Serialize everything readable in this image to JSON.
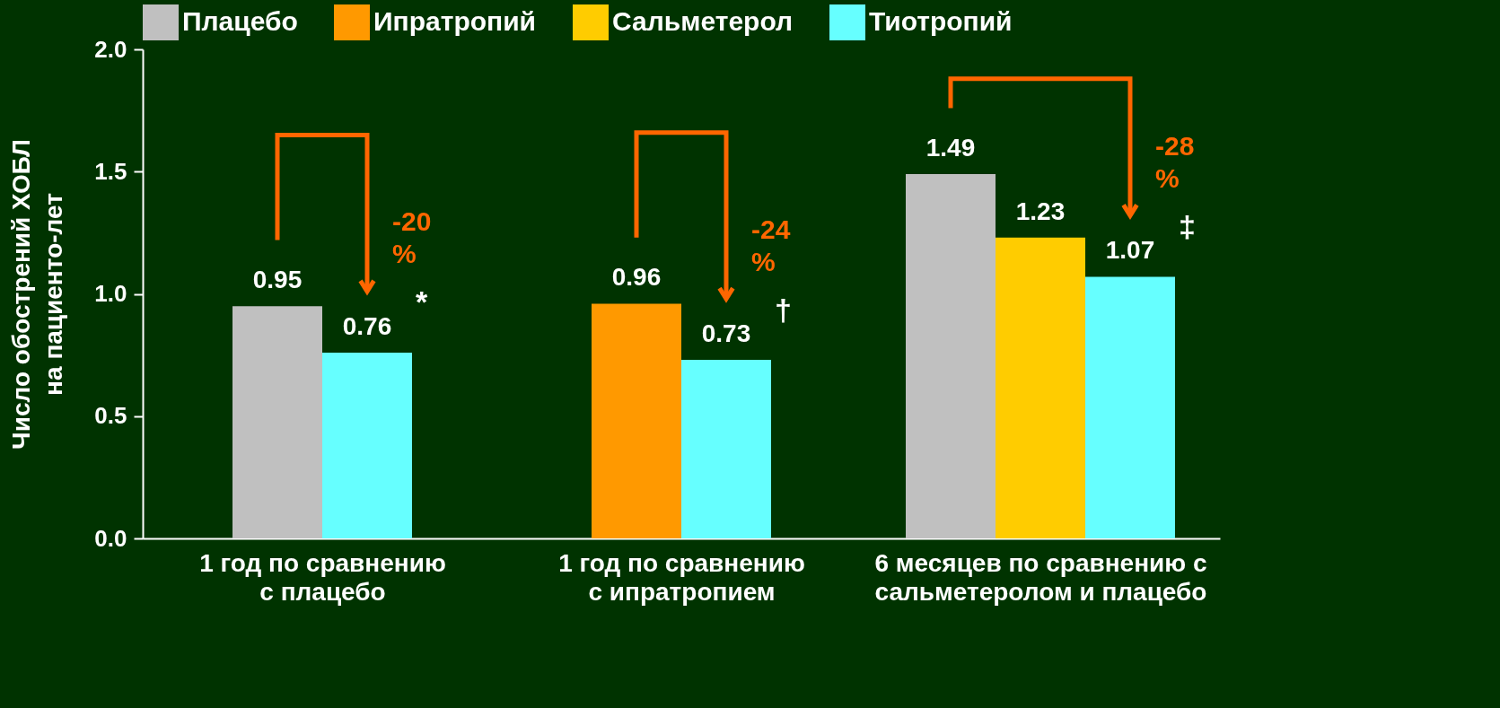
{
  "chart_data": {
    "type": "bar",
    "categories": [
      "1 год по сравнению\nс плацебо",
      "1 год по сравнению\nс ипратропием",
      "6 месяцев по сравнению с\nсальметеролом и плацебо"
    ],
    "ylabel": "Число обострений ХОБЛ\nна пациенто-лет",
    "series": [
      {
        "name": "Плацебо",
        "color": "#c0c0c0",
        "values": [
          0.95,
          null,
          1.49
        ]
      },
      {
        "name": "Ипратропий",
        "color": "#ff9900",
        "values": [
          null,
          0.96,
          null
        ]
      },
      {
        "name": "Сальметерол",
        "color": "#ffcc00",
        "values": [
          null,
          null,
          1.23
        ]
      },
      {
        "name": "Тиотропий",
        "color": "#66ffff",
        "values": [
          0.76,
          0.73,
          1.07
        ]
      }
    ],
    "ylim": [
      0,
      2
    ],
    "yticks": [
      {
        "value": 0,
        "label": "0.0"
      },
      0.5,
      {
        "value": 1,
        "label": "1.0"
      },
      1.5,
      {
        "value": 2,
        "label": "2.0"
      }
    ],
    "data_labels": true,
    "grid": false,
    "legend": "top",
    "annotations": [
      "-20 %",
      "*",
      "-24 %",
      "†",
      "-28 %",
      "‡"
    ]
  }
}
